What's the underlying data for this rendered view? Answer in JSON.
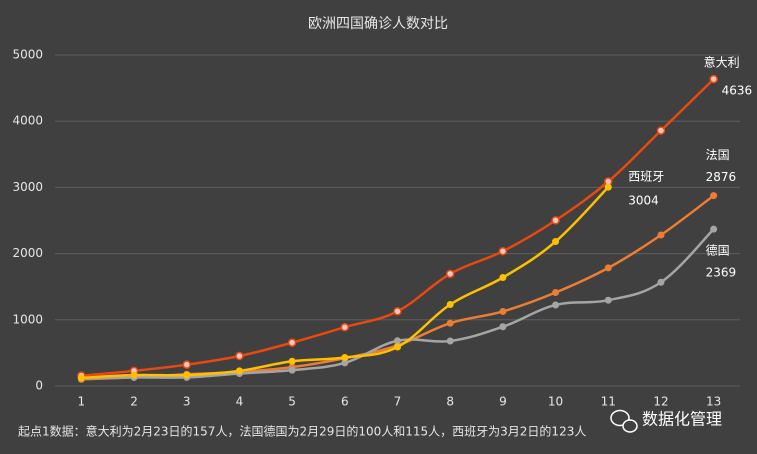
{
  "chart_data": {
    "type": "line",
    "title": "欧洲四国确诊人数对比",
    "categories": [
      "1",
      "2",
      "3",
      "4",
      "5",
      "6",
      "7",
      "8",
      "9",
      "10",
      "11",
      "12",
      "13"
    ],
    "series": [
      {
        "name": "意大利",
        "color": "#e8490f",
        "values": [
          157,
          229,
          322,
          453,
          655,
          888,
          1128,
          1694,
          2036,
          2502,
          3089,
          3858,
          4636
        ]
      },
      {
        "name": "法国",
        "color": "#ed7d31",
        "values": [
          100,
          130,
          178,
          212,
          285,
          420,
          613,
          949,
          1126,
          1412,
          1784,
          2281,
          2876
        ]
      },
      {
        "name": "德国",
        "color": "#a5a5a5",
        "values": [
          115,
          130,
          130,
          188,
          240,
          349,
          684,
          680,
          895,
          1224,
          1296,
          1567,
          2369
        ]
      },
      {
        "name": "西班牙",
        "color": "#ffc000",
        "values": [
          123,
          165,
          165,
          228,
          374,
          430,
          589,
          1231,
          1639,
          2182,
          3004,
          null,
          null
        ]
      }
    ],
    "ylim": [
      0,
      5000
    ],
    "yticks": [
      0,
      1000,
      2000,
      3000,
      4000,
      5000
    ],
    "grid": true,
    "note": "起点1数据：意大利为2月23日的157人，法国德国为2月29日的100人和115人，西班牙为3月2日的123人",
    "watermark": "数据化管理"
  }
}
